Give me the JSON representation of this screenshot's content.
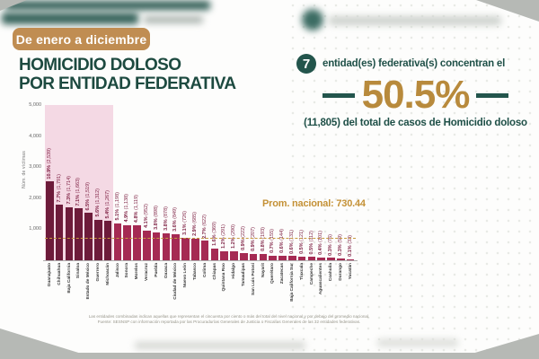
{
  "badge": {
    "label": "De enero a diciembre"
  },
  "title": {
    "line1": "HOMICIDIO DOLOSO",
    "line2": "POR ENTIDAD FEDERATIVA"
  },
  "stat": {
    "count": "7",
    "line1": "entidad(es) federativa(s) concentran el",
    "percent": "50.5%",
    "line2": "(11,805) del total de casos de Homicidio doloso"
  },
  "colors": {
    "badge_gold": "#c08d52",
    "title_green": "#1d4a40",
    "stat_teal": "#23554c",
    "percent_gold": "#b88a3c",
    "bar_highlight": "#6d1b3a",
    "bar_normal": "#a52a53",
    "highlight_region_pink": "#f4d9e4",
    "avg_line_gold": "#c49136"
  },
  "chart_data": {
    "type": "bar",
    "title": "HOMICIDIO DOLOSO POR ENTIDAD FEDERATIVA",
    "xlabel": "",
    "ylabel": "Núm. de víctimas",
    "ylim": [
      0,
      5000
    ],
    "ytick_values": [
      1000,
      2000,
      3000,
      4000,
      5000
    ],
    "grid": false,
    "legend": "none",
    "highlight_first_n": 7,
    "avg_line": {
      "label": "Prom. nacional: 730.44",
      "value": 730.44
    },
    "categories": [
      "Guanajuato",
      "Chihuahua",
      "Baja California",
      "Sinaloa",
      "Estado de México",
      "Guerrero",
      "Michoacán",
      "Jalisco",
      "Sonora",
      "Morelos",
      "Veracruz",
      "Puebla",
      "Oaxaca",
      "Ciudad de México",
      "Nuevo León",
      "Tabasco",
      "Colima",
      "Chiapas",
      "Quintana Roo",
      "Hidalgo",
      "Tamaulipas",
      "San Luis Potosí",
      "Nayarit",
      "Querétaro",
      "Zacatecas",
      "Baja California Sur",
      "Tlaxcala",
      "Campeche",
      "Aguascalientes",
      "Coahuila",
      "Durango",
      "Yucatán"
    ],
    "values": [
      2539,
      1791,
      1714,
      1663,
      1519,
      1312,
      1267,
      1198,
      1138,
      1119,
      952,
      898,
      878,
      849,
      726,
      685,
      622,
      369,
      291,
      290,
      222,
      207,
      193,
      155,
      144,
      131,
      121,
      112,
      101,
      76,
      59,
      33
    ],
    "percent_labels": [
      "10.9%",
      "7.7%",
      "7.3%",
      "7.1%",
      "6.5%",
      "5.6%",
      "5.4%",
      "5.1%",
      "4.9%",
      "4.8%",
      "4.1%",
      "3.8%",
      "3.8%",
      "3.6%",
      "3.1%",
      "2.9%",
      "2.7%",
      "1.6%",
      "1.2%",
      "1.2%",
      "0.9%",
      "0.9%",
      "0.8%",
      "0.7%",
      "0.6%",
      "0.6%",
      "0.5%",
      "0.5%",
      "0.4%",
      "0.3%",
      "0.3%",
      "0.1%"
    ]
  },
  "footer": {
    "line1": "Las entidades combinadas indican aquellas que representan el cincuenta por ciento o más del total del nivel nacional y por debajo del promedio nacional.",
    "line2": "Fuente: SESNSP con información reportada por las Procuradurías Generales de Justicia o Fiscalías Generales de las 32 entidades federativas."
  }
}
